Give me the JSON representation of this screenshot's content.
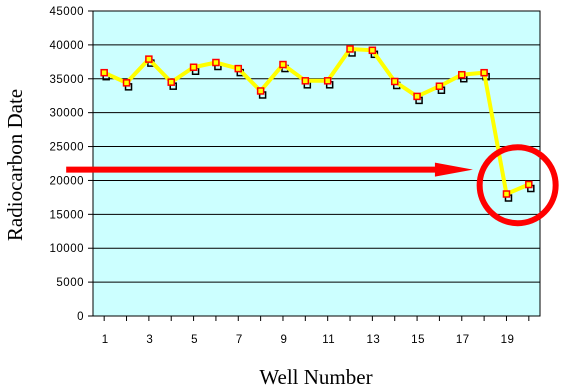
{
  "chart_data": {
    "type": "line",
    "xlabel": "Well Number",
    "ylabel": "Radiocarbon Date",
    "ylim": [
      0,
      45000
    ],
    "yticks": [
      0,
      5000,
      10000,
      15000,
      20000,
      25000,
      30000,
      35000,
      40000,
      45000
    ],
    "xlim": [
      0.5,
      20.5
    ],
    "xticks": [
      1,
      3,
      5,
      7,
      9,
      11,
      13,
      15,
      17,
      19
    ],
    "grid": "horizontal",
    "series": [
      {
        "x": [
          1,
          2,
          3,
          4,
          5,
          6,
          7,
          8,
          9,
          10,
          11,
          12,
          13,
          14,
          15,
          16,
          17,
          18,
          19,
          20
        ],
        "values": [
          35900,
          34400,
          37900,
          34500,
          36700,
          37400,
          36500,
          33200,
          37100,
          34700,
          34700,
          39400,
          39200,
          34600,
          32400,
          33900,
          35600,
          35900,
          18000,
          19400
        ],
        "line_color": "#ffff00",
        "marker_fill": "#ffff00",
        "marker_edge": "#ff0000",
        "shadow_color": "#000000"
      }
    ],
    "plot_background": "#ccffff",
    "annotations": [
      {
        "kind": "arrow",
        "color": "#ff0000",
        "y_value": 21600,
        "from_x": -0.7,
        "to_x": 17.5
      },
      {
        "kind": "circle",
        "color": "#ff0000",
        "center_x": 19.5,
        "center_y": 19300
      }
    ]
  }
}
